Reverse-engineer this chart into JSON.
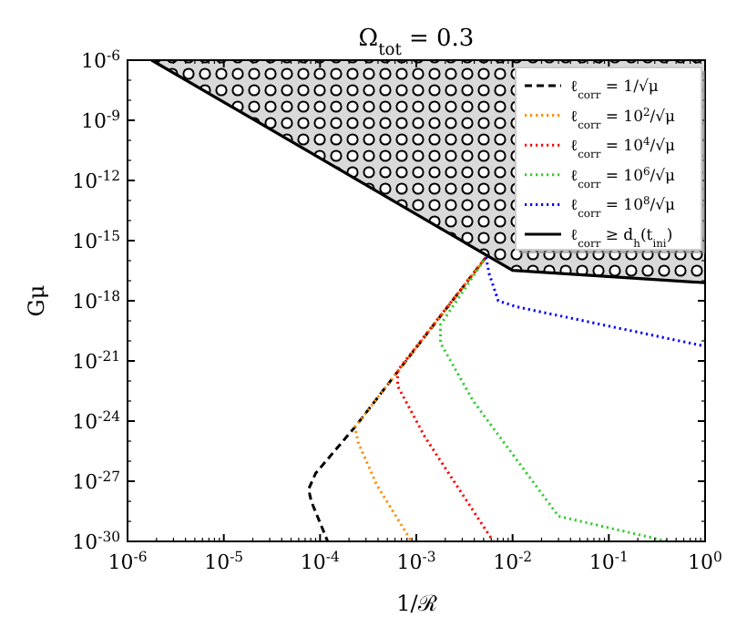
{
  "chart_data": {
    "type": "line",
    "title": "Ω$_{tot}$ = 0.3",
    "xlabel": "1/ℛ",
    "ylabel": "Gμ",
    "log": "xy",
    "grid": false,
    "legend": "top right",
    "xlim": [
      1e-06,
      1
    ],
    "ylim": [
      1e-30,
      1e-06
    ],
    "xticks": [
      {
        "value": 1e-06,
        "label": "10$^{-6}$"
      },
      {
        "value": 1e-05,
        "label": "10$^{-5}$"
      },
      {
        "value": 0.0001,
        "label": "10$^{-4}$"
      },
      {
        "value": 0.001,
        "label": "10$^{-3}$"
      },
      {
        "value": 0.01,
        "label": "10$^{-2}$"
      },
      {
        "value": 0.1,
        "label": "10$^{-1}$"
      },
      {
        "value": 1,
        "label": "10$^{0}$"
      }
    ],
    "yticks": [
      {
        "value": 1e-30,
        "label": "10$^{-30}$"
      },
      {
        "value": 1e-27,
        "label": "10$^{-27}$"
      },
      {
        "value": 1e-24,
        "label": "10$^{-24}$"
      },
      {
        "value": 1e-21,
        "label": "10$^{-21}$"
      },
      {
        "value": 1e-18,
        "label": "10$^{-18}$"
      },
      {
        "value": 1e-15,
        "label": "10$^{-15}$"
      },
      {
        "value": 1e-12,
        "label": "10$^{-12}$"
      },
      {
        "value": 1e-09,
        "label": "10$^{-9}$"
      },
      {
        "value": 1e-06,
        "label": "10$^{-6}$"
      }
    ],
    "series": [
      {
        "name": "ℓ$_{corr}$ = 1/√μ",
        "color": "#000000",
        "line_style": "dashed",
        "x": [
          0.0053,
          0.00023,
          9e-05,
          7.6e-05,
          8.1e-05,
          0.00012
        ],
        "values": [
          1.5e-16,
          5e-25,
          2.5e-27,
          4e-28,
          1e-28,
          1e-30
        ]
      },
      {
        "name": "ℓ$_{corr}$ = 10$^{2}$/√μ",
        "color": "#ff8c00",
        "line_style": "dotted",
        "x": [
          0.0053,
          0.00023,
          0.00025,
          0.00039,
          0.00089
        ],
        "values": [
          1.5e-16,
          5e-25,
          8e-26,
          6.3e-28,
          1e-30
        ]
      },
      {
        "name": "ℓ$_{corr}$ = 10$^{4}$/√μ",
        "color": "#ff0000",
        "line_style": "dotted",
        "x": [
          0.0053,
          0.00064,
          0.00064,
          0.00123,
          0.0063
        ],
        "values": [
          1.5e-16,
          3.3e-22,
          5.6e-23,
          1.6e-25,
          1e-30
        ]
      },
      {
        "name": "ℓ$_{corr}$ = 10$^{6}$/√μ",
        "color": "#32cd32",
        "line_style": "dotted",
        "x": [
          0.0053,
          0.00178,
          0.00178,
          0.0039,
          0.03,
          0.41
        ],
        "values": [
          1.5e-16,
          6.3e-20,
          8e-21,
          1e-23,
          1.8e-29,
          1e-30
        ]
      },
      {
        "name": "ℓ$_{corr}$ = 10$^{8}$/√μ",
        "color": "#0000ff",
        "line_style": "dotted",
        "x": [
          0.0053,
          0.0057,
          0.0071,
          0.011,
          1
        ],
        "values": [
          1.5e-16,
          2.3e-17,
          1e-18,
          5e-19,
          5.4e-21
        ]
      },
      {
        "name": "ℓ$_{corr}$ ≥ d$_{h}$(t$_{ini}$)",
        "color": "#000000",
        "line_style": "solid",
        "x": [
          1.78e-06,
          0.01,
          1
        ],
        "values": [
          1e-06,
          3.3e-17,
          7.9e-18
        ],
        "lower": [
          1e-06,
          3.3e-17,
          7.9e-18
        ],
        "upper": [
          1e-06,
          1e-06,
          1e-06
        ]
      }
    ]
  }
}
